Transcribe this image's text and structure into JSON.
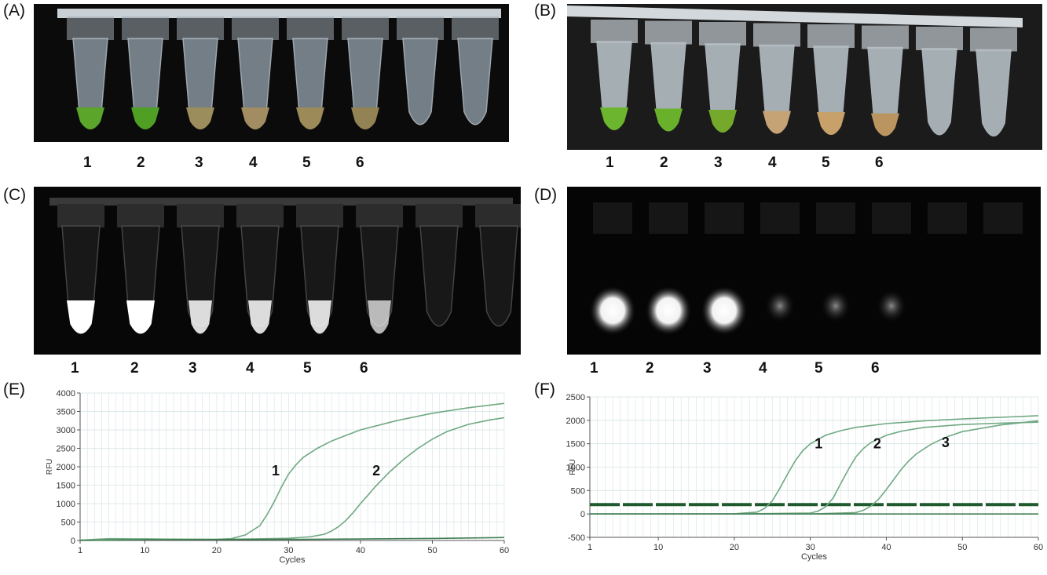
{
  "panels": {
    "A": {
      "letter": "(A)",
      "lanes": [
        "1",
        "2",
        "3",
        "4",
        "5",
        "6"
      ]
    },
    "B": {
      "letter": "(B)",
      "lanes": [
        "1",
        "2",
        "3",
        "4",
        "5",
        "6"
      ]
    },
    "C": {
      "letter": "(C)",
      "lanes": [
        "1",
        "2",
        "3",
        "4",
        "5",
        "6"
      ]
    },
    "D": {
      "letter": "(D)",
      "lanes": [
        "1",
        "2",
        "3",
        "4",
        "5",
        "6"
      ]
    },
    "E": {
      "letter": "(E)"
    },
    "F": {
      "letter": "(F)"
    }
  },
  "colors": {
    "curve": "#6fa982",
    "threshold": "#1e5a2e",
    "grid": "#d6e3e3",
    "axis": "#555555"
  },
  "chart_data": [
    {
      "panel": "E",
      "type": "line",
      "xlabel": "Cycles",
      "ylabel": "RFU",
      "xlim": [
        1,
        60
      ],
      "ylim": [
        0,
        4000
      ],
      "xticks": [
        1,
        10,
        20,
        30,
        40,
        50,
        60
      ],
      "yticks": [
        0,
        500,
        1000,
        1500,
        2000,
        2500,
        3000,
        3500,
        4000
      ],
      "grid": true,
      "series": [
        {
          "name": "1",
          "x": [
            1,
            5,
            10,
            15,
            20,
            22,
            24,
            26,
            27,
            28,
            29,
            30,
            31,
            32,
            34,
            36,
            38,
            40,
            45,
            50,
            55,
            60
          ],
          "y": [
            10,
            50,
            40,
            30,
            35,
            50,
            150,
            400,
            700,
            1050,
            1450,
            1800,
            2050,
            2250,
            2500,
            2700,
            2850,
            3000,
            3250,
            3450,
            3600,
            3720
          ]
        },
        {
          "name": "2",
          "x": [
            1,
            10,
            20,
            25,
            30,
            33,
            35,
            36,
            37,
            38,
            39,
            40,
            41,
            42,
            44,
            46,
            48,
            50,
            52,
            55,
            58,
            60
          ],
          "y": [
            10,
            40,
            30,
            40,
            60,
            100,
            170,
            260,
            380,
            550,
            760,
            1000,
            1220,
            1450,
            1850,
            2200,
            2500,
            2750,
            2950,
            3150,
            3270,
            3330
          ]
        },
        {
          "name": "",
          "x": [
            1,
            10,
            20,
            30,
            40,
            50,
            60
          ],
          "y": [
            0,
            20,
            25,
            30,
            40,
            55,
            80
          ]
        }
      ],
      "annotations": [
        {
          "text": "1",
          "x": 28.2,
          "y": 1770
        },
        {
          "text": "2",
          "x": 42.2,
          "y": 1770
        }
      ]
    },
    {
      "panel": "F",
      "type": "line",
      "xlabel": "Cycles",
      "ylabel": "RFU",
      "xlim": [
        1,
        60
      ],
      "ylim": [
        -500,
        2500
      ],
      "xticks": [
        1,
        10,
        20,
        30,
        40,
        50,
        60
      ],
      "yticks": [
        -500,
        0,
        500,
        1000,
        1500,
        2000,
        2500
      ],
      "grid": true,
      "threshold": 200,
      "series": [
        {
          "name": "1",
          "x": [
            1,
            10,
            20,
            23,
            24,
            25,
            26,
            27,
            28,
            29,
            30,
            32,
            34,
            36,
            40,
            45,
            50,
            55,
            60
          ],
          "y": [
            0,
            0,
            5,
            40,
            120,
            280,
            550,
            850,
            1130,
            1350,
            1500,
            1680,
            1780,
            1850,
            1930,
            1990,
            2030,
            2065,
            2100
          ]
        },
        {
          "name": "2",
          "x": [
            1,
            10,
            20,
            30,
            31,
            32,
            33,
            34,
            35,
            36,
            37,
            38,
            40,
            42,
            45,
            50,
            55,
            60
          ],
          "y": [
            0,
            0,
            0,
            20,
            60,
            150,
            340,
            650,
            950,
            1220,
            1400,
            1530,
            1680,
            1770,
            1850,
            1910,
            1940,
            1960
          ]
        },
        {
          "name": "3",
          "x": [
            1,
            10,
            20,
            30,
            36,
            37,
            38,
            39,
            40,
            41,
            42,
            43,
            44,
            46,
            48,
            50,
            55,
            60
          ],
          "y": [
            0,
            0,
            0,
            0,
            30,
            80,
            170,
            320,
            520,
            740,
            960,
            1140,
            1290,
            1500,
            1650,
            1760,
            1900,
            1990
          ]
        },
        {
          "name": "",
          "x": [
            1,
            60
          ],
          "y": [
            0,
            0
          ]
        }
      ],
      "annotations": [
        {
          "text": "1",
          "x": 31.1,
          "y": 1400
        },
        {
          "text": "2",
          "x": 38.8,
          "y": 1400
        },
        {
          "text": "3",
          "x": 47.8,
          "y": 1430
        }
      ]
    }
  ]
}
